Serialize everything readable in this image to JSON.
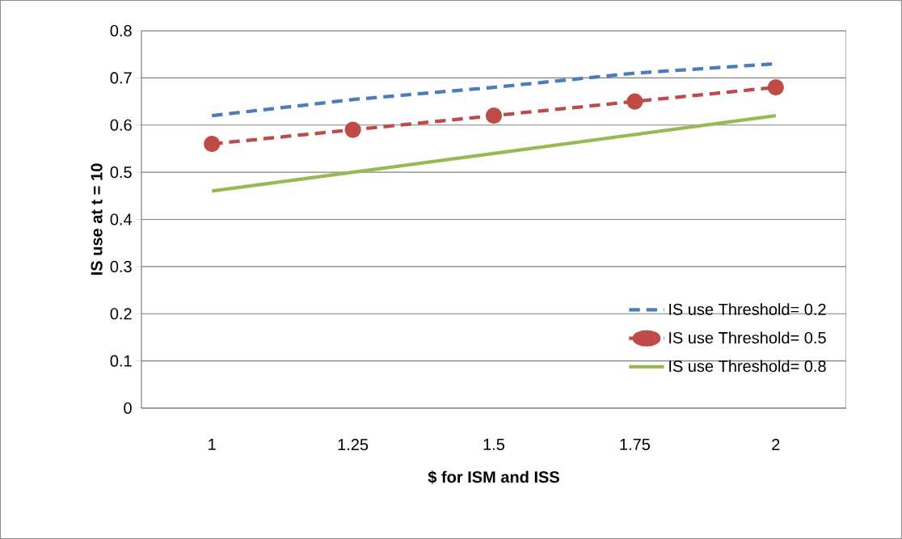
{
  "chart_data": {
    "type": "line",
    "xlabel": "$ for ISM and ISS",
    "ylabel": "IS use at t = 10",
    "categories": [
      "1",
      "1.25",
      "1.5",
      "1.75",
      "2"
    ],
    "series": [
      {
        "name": "IS use Threshold= 0.2",
        "color": "#4a7ebb",
        "line_style": "dashed",
        "marker": "none",
        "values": [
          0.62,
          0.654,
          0.68,
          0.71,
          0.73
        ]
      },
      {
        "name": "IS use Threshold= 0.5",
        "color": "#be4b48",
        "line_style": "dashed",
        "marker": "circle",
        "values": [
          0.56,
          0.59,
          0.62,
          0.65,
          0.68
        ]
      },
      {
        "name": "IS use Threshold= 0.8",
        "color": "#98b954",
        "line_style": "solid",
        "marker": "none",
        "values": [
          0.46,
          0.5,
          0.54,
          0.58,
          0.62
        ]
      }
    ],
    "ylim": [
      0,
      0.8
    ],
    "yticks": [
      0,
      0.1,
      0.2,
      0.3,
      0.4,
      0.5,
      0.6,
      0.7,
      0.8
    ],
    "grid": "y",
    "legend": "bottom right"
  }
}
